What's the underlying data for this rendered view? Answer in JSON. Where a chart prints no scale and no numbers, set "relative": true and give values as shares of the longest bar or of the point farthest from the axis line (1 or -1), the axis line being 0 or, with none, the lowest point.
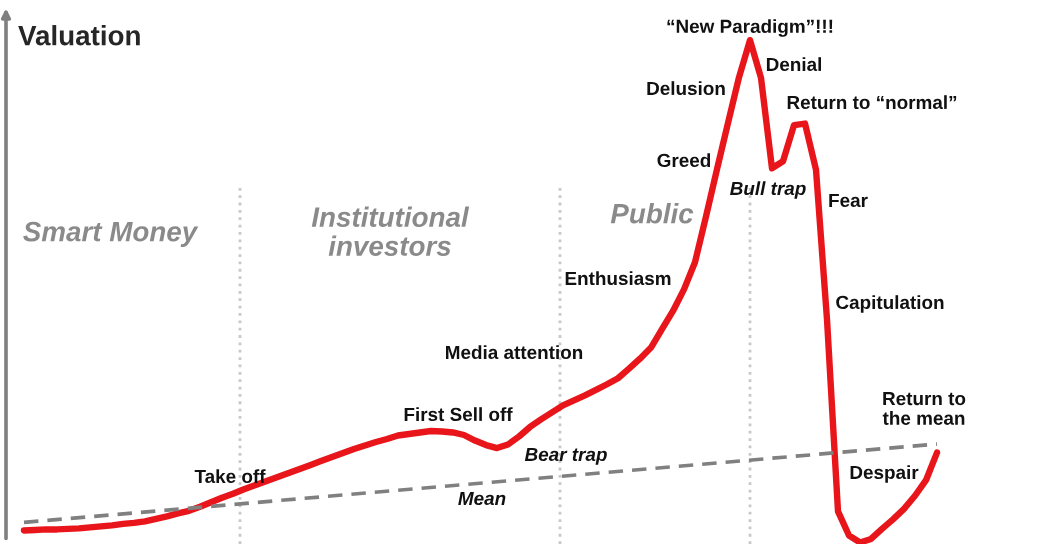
{
  "chart_data": {
    "type": "line",
    "relative": true,
    "ylabel": "Valuation",
    "categories": [
      null,
      null,
      null,
      null,
      null,
      null,
      null,
      null,
      null,
      null,
      null,
      null,
      null,
      null,
      null,
      null,
      null,
      null,
      null,
      null,
      null,
      null,
      null,
      null,
      null,
      null,
      null,
      null,
      null,
      null,
      null,
      null,
      null,
      null,
      null,
      null,
      null,
      null,
      null,
      null,
      null,
      null,
      null,
      null,
      null,
      null,
      null,
      null,
      null,
      null,
      null,
      null,
      null,
      null,
      null,
      null,
      null,
      null,
      null,
      null,
      null,
      null,
      null,
      null,
      null,
      null,
      null,
      null,
      null,
      null,
      null,
      null,
      null,
      null,
      null,
      null,
      null,
      null,
      null,
      null,
      null,
      null,
      null,
      null
    ],
    "series": [
      {
        "color": "#e8161b",
        "line_style": "solid",
        "values": [
          0.024,
          0.025,
          0.026,
          0.026,
          0.027,
          0.028,
          0.03,
          0.032,
          0.034,
          0.037,
          0.039,
          0.042,
          0.047,
          0.052,
          0.058,
          0.063,
          0.071,
          0.08,
          0.089,
          0.097,
          0.106,
          0.114,
          0.122,
          0.13,
          0.138,
          0.146,
          0.154,
          0.162,
          0.17,
          0.178,
          0.186,
          0.193,
          0.2,
          0.206,
          0.213,
          0.216,
          0.219,
          0.222,
          0.221,
          0.219,
          0.214,
          0.203,
          0.194,
          0.188,
          0.195,
          0.211,
          0.23,
          0.245,
          0.259,
          0.273,
          0.283,
          0.293,
          0.304,
          0.315,
          0.327,
          0.346,
          0.366,
          0.388,
          0.425,
          0.461,
          0.504,
          0.558,
          0.649,
          0.743,
          0.835,
          0.926,
          1.0,
          0.925,
          0.745,
          0.759,
          0.831,
          0.834,
          0.742,
          0.444,
          0.062,
          0.014,
          0.0,
          0.007,
          0.027,
          0.046,
          0.067,
          0.093,
          0.124,
          0.179
        ]
      },
      {
        "color": "#808080",
        "line_style": "dashed",
        "values": [
          0.04,
          null,
          null,
          null,
          null,
          null,
          null,
          null,
          null,
          null,
          null,
          null,
          null,
          null,
          null,
          null,
          null,
          null,
          null,
          null,
          null,
          null,
          null,
          null,
          null,
          null,
          null,
          null,
          null,
          null,
          null,
          null,
          null,
          null,
          null,
          null,
          null,
          null,
          null,
          null,
          null,
          null,
          null,
          null,
          null,
          null,
          null,
          null,
          null,
          null,
          null,
          null,
          null,
          null,
          null,
          null,
          null,
          null,
          null,
          null,
          null,
          null,
          null,
          null,
          null,
          null,
          null,
          null,
          null,
          null,
          null,
          null,
          null,
          null,
          null,
          null,
          null,
          null,
          null,
          null,
          null,
          null,
          null,
          0.196
        ]
      }
    ],
    "annotations": [
      "Smart Money",
      "Institutional\ninvestors",
      "Public",
      "Take off",
      "First Sell off",
      "Bear trap",
      "Mean",
      "Media attention",
      "Enthusiasm",
      "Greed",
      "Delusion",
      "“New Paradigm”!!!",
      "Denial",
      "Return to “normal”",
      "Bull trap",
      "Fear",
      "Capitulation",
      "Return to\nthe mean",
      "Despair"
    ]
  }
}
